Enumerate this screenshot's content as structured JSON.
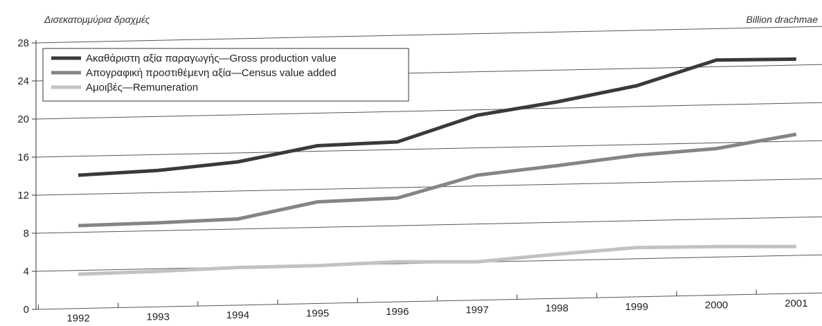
{
  "chart_data": {
    "type": "line",
    "y_unit_label_greek": "Δισεκατομμύρια δραχμές",
    "y_unit_label_english": "Billion drachmae",
    "categories": [
      "1992",
      "1993",
      "1994",
      "1995",
      "1996",
      "1997",
      "1998",
      "1999",
      "2000",
      "2001"
    ],
    "yticks": [
      "0",
      "4",
      "8",
      "12",
      "16",
      "20",
      "24",
      "28"
    ],
    "ylim": [
      0,
      28
    ],
    "grid": true,
    "legend_position": "top-left",
    "series": [
      {
        "name": "Ακαθάριστη αξία παραγωγής—Gross production value",
        "color": "#3a3a3a",
        "values": [
          14.1,
          14.6,
          15.5,
          17.2,
          17.6,
          20.4,
          21.8,
          23.5,
          26.2,
          26.3
        ]
      },
      {
        "name": "Απογραφική προστιθέμενη αξία—Census value added",
        "color": "#858585",
        "values": [
          8.8,
          9.1,
          9.5,
          11.3,
          11.7,
          14.1,
          15.1,
          16.2,
          16.9,
          18.4
        ]
      },
      {
        "name": "Αμοιβές—Remuneration",
        "color": "#c2c2c2",
        "values": [
          3.7,
          4.0,
          4.4,
          4.6,
          5.0,
          5.0,
          5.8,
          6.5,
          6.6,
          6.6
        ]
      }
    ]
  }
}
